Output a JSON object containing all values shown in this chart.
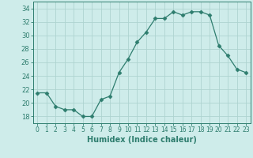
{
  "x": [
    0,
    1,
    2,
    3,
    4,
    5,
    6,
    7,
    8,
    9,
    10,
    11,
    12,
    13,
    14,
    15,
    16,
    17,
    18,
    19,
    20,
    21,
    22,
    23
  ],
  "y": [
    21.5,
    21.5,
    19.5,
    19.0,
    19.0,
    18.0,
    18.0,
    20.5,
    21.0,
    24.5,
    26.5,
    29.0,
    30.5,
    32.5,
    32.5,
    33.5,
    33.0,
    33.5,
    33.5,
    33.0,
    28.5,
    27.0,
    25.0,
    24.5
  ],
  "line_color": "#2e7d6e",
  "marker": "D",
  "marker_size": 2.5,
  "bg_color": "#ceecea",
  "grid_color": "#aed4d0",
  "xlabel": "Humidex (Indice chaleur)",
  "xlim": [
    -0.5,
    23.5
  ],
  "ylim": [
    17,
    35
  ],
  "yticks": [
    18,
    20,
    22,
    24,
    26,
    28,
    30,
    32,
    34
  ],
  "xticks": [
    0,
    1,
    2,
    3,
    4,
    5,
    6,
    7,
    8,
    9,
    10,
    11,
    12,
    13,
    14,
    15,
    16,
    17,
    18,
    19,
    20,
    21,
    22,
    23
  ],
  "tick_color": "#2e7d6e",
  "font_color": "#2e7d6e",
  "xlabel_fontsize": 7,
  "ytick_fontsize": 6,
  "xtick_fontsize": 5.5
}
